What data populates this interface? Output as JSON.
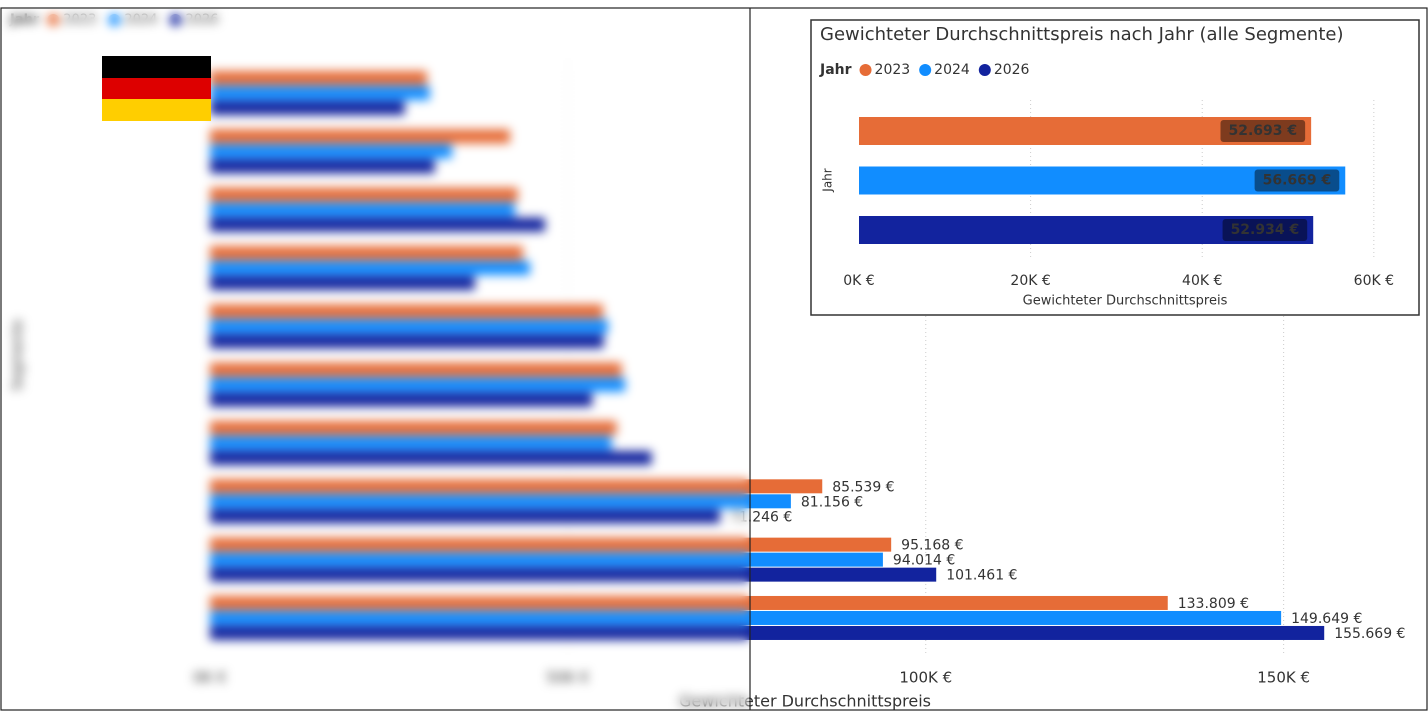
{
  "chart_data": [
    {
      "type": "bar",
      "orientation": "horizontal",
      "x_label": "Gewichteter Durchschnittspreis",
      "y_label": "Segmente",
      "legend_title": "Jahr",
      "categories": [
        null,
        null,
        null,
        null,
        null,
        null,
        null,
        null,
        null,
        null
      ],
      "series": [
        {
          "name": "2023",
          "color": "#e66c37",
          "values": [
            30300,
            41900,
            43000,
            43700,
            54900,
            57500,
            56800,
            85539,
            95168,
            133809
          ],
          "value_labels": [
            null,
            null,
            null,
            null,
            null,
            null,
            null,
            "85.539 €",
            "95.168 €",
            "133.809 €"
          ]
        },
        {
          "name": "2024",
          "color": "#118dff",
          "values": [
            30700,
            33800,
            42600,
            44700,
            55600,
            58000,
            56100,
            81156,
            94014,
            149649
          ],
          "value_labels": [
            null,
            null,
            null,
            null,
            null,
            null,
            null,
            "81.156 €",
            "94.014 €",
            "149.649 €"
          ]
        },
        {
          "name": "2026",
          "color": "#12239e",
          "values": [
            27200,
            31400,
            46800,
            37000,
            55000,
            53400,
            61700,
            71246,
            101461,
            155669
          ],
          "value_labels": [
            null,
            null,
            null,
            null,
            null,
            null,
            null,
            "71.246 €",
            "101.461 €",
            "155.669 €"
          ]
        }
      ],
      "xlim": [
        0,
        165000
      ],
      "xticks": [
        {
          "value": 0,
          "label": "0K €"
        },
        {
          "value": 50000,
          "label": "50K €"
        },
        {
          "value": 100000,
          "label": "100K €"
        },
        {
          "value": 150000,
          "label": "150K €"
        }
      ],
      "grid": true
    },
    {
      "type": "bar",
      "orientation": "horizontal",
      "title": "Gewichteter Durchschnittspreis nach Jahr (alle Segmente)",
      "x_label": "Gewichteter Durchschnittspreis",
      "y_label": "Jahr",
      "legend_title": "Jahr",
      "series": [
        {
          "name": "2023",
          "color": "#e66c37",
          "values": [
            52693
          ],
          "value_labels": [
            "52.693 €"
          ]
        },
        {
          "name": "2024",
          "color": "#118dff",
          "values": [
            56669
          ],
          "value_labels": [
            "56.669 €"
          ]
        },
        {
          "name": "2026",
          "color": "#12239e",
          "values": [
            52934
          ],
          "value_labels": [
            "52.934 €"
          ]
        }
      ],
      "xlim": [
        0,
        62000
      ],
      "xticks": [
        {
          "value": 0,
          "label": "0K €"
        },
        {
          "value": 20000,
          "label": "20K €"
        },
        {
          "value": 40000,
          "label": "40K €"
        },
        {
          "value": 60000,
          "label": "60K €"
        }
      ],
      "grid": true
    }
  ]
}
